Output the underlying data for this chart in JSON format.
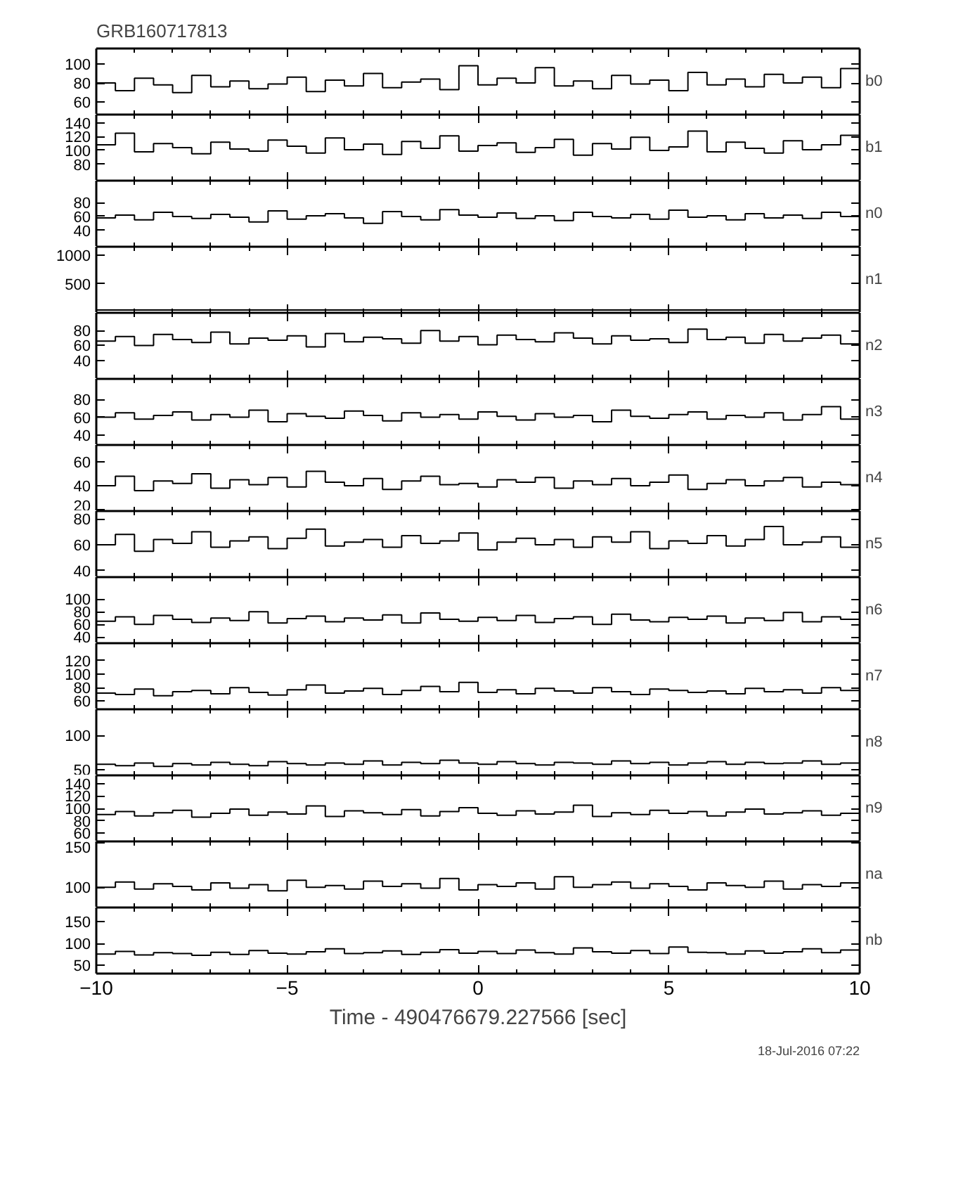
{
  "chart_data": [
    {
      "type": "step",
      "title": "GRB160717813",
      "annotations": [
        "b0"
      ],
      "xlim": [
        -10,
        10
      ],
      "xticks": [
        -10,
        -5,
        0,
        5,
        10
      ],
      "tick_labels": "y",
      "ylim": [
        47,
        116
      ],
      "yticks": [
        60,
        80,
        100
      ],
      "x": [
        -10,
        -9.5,
        -9,
        -8.5,
        -8,
        -7.5,
        -7,
        -6.5,
        -6,
        -5.5,
        -5,
        -4.5,
        -4,
        -3.5,
        -3,
        -2.5,
        -2,
        -1.5,
        -1,
        -0.5,
        0,
        0.5,
        1,
        1.5,
        2,
        2.5,
        3,
        3.5,
        4,
        4.5,
        5,
        5.5,
        6,
        6.5,
        7,
        7.5,
        8,
        8.5,
        9,
        9.5,
        10
      ],
      "values": [
        80,
        72,
        85,
        78,
        70,
        88,
        76,
        82,
        74,
        79,
        86,
        71,
        83,
        77,
        90,
        75,
        81,
        84,
        73,
        98,
        78,
        85,
        80,
        96,
        77,
        82,
        74,
        88,
        79,
        83,
        72,
        91,
        78,
        84,
        76,
        89,
        80,
        86,
        75,
        95,
        83
      ]
    },
    {
      "type": "step",
      "annotations": [
        "b1"
      ],
      "xlim": [
        -10,
        10
      ],
      "xticks": [
        -10,
        -5,
        0,
        5,
        10
      ],
      "tick_labels": "y",
      "ylim": [
        56,
        152
      ],
      "yticks": [
        80,
        100,
        120,
        140
      ],
      "x": [
        -10,
        -9.5,
        -9,
        -8.5,
        -8,
        -7.5,
        -7,
        -6.5,
        -6,
        -5.5,
        -5,
        -4.5,
        -4,
        -3.5,
        -3,
        -2.5,
        -2,
        -1.5,
        -1,
        -0.5,
        0,
        0.5,
        1,
        1.5,
        2,
        2.5,
        3,
        3.5,
        4,
        4.5,
        5,
        5.5,
        6,
        6.5,
        7,
        7.5,
        8,
        8.5,
        9,
        9.5,
        10
      ],
      "values": [
        108,
        125,
        98,
        110,
        104,
        95,
        112,
        102,
        99,
        115,
        106,
        96,
        118,
        101,
        109,
        94,
        113,
        103,
        121,
        99,
        107,
        111,
        97,
        104,
        116,
        93,
        110,
        102,
        119,
        100,
        105,
        128,
        98,
        112,
        103,
        96,
        114,
        101,
        108,
        122,
        104
      ]
    },
    {
      "type": "step",
      "annotations": [
        "n0"
      ],
      "xlim": [
        -10,
        10
      ],
      "xticks": [
        -10,
        -5,
        0,
        5,
        10
      ],
      "tick_labels": "y",
      "ylim": [
        16,
        112
      ],
      "yticks": [
        40,
        60,
        80
      ],
      "x": [
        -10,
        -9.5,
        -9,
        -8.5,
        -8,
        -7.5,
        -7,
        -6.5,
        -6,
        -5.5,
        -5,
        -4.5,
        -4,
        -3.5,
        -3,
        -2.5,
        -2,
        -1.5,
        -1,
        -0.5,
        0,
        0.5,
        1,
        1.5,
        2,
        2.5,
        3,
        3.5,
        4,
        4.5,
        5,
        5.5,
        6,
        6.5,
        7,
        7.5,
        8,
        8.5,
        9,
        9.5,
        10
      ],
      "values": [
        58,
        62,
        55,
        66,
        60,
        57,
        63,
        59,
        52,
        68,
        56,
        61,
        64,
        58,
        50,
        67,
        60,
        55,
        70,
        62,
        59,
        65,
        57,
        61,
        54,
        66,
        60,
        58,
        63,
        56,
        69,
        59,
        61,
        55,
        64,
        58,
        62,
        57,
        66,
        60,
        63
      ]
    },
    {
      "type": "step",
      "annotations": [
        "n1"
      ],
      "xlim": [
        -10,
        10
      ],
      "xticks": [
        -10,
        -5,
        0,
        5,
        10
      ],
      "tick_labels": "y",
      "ylim": [
        0,
        1140
      ],
      "yticks": [
        500,
        1000
      ],
      "x": [
        -10,
        -9.5,
        -9,
        -8.5,
        -8,
        -7.5,
        -7,
        -6.5,
        -6,
        -5.5,
        -5,
        -4.5,
        -4,
        -3.5,
        -3,
        -2.5,
        -2,
        -1.5,
        -1,
        -0.5,
        0,
        0.5,
        1,
        1.5,
        2,
        2.5,
        3,
        3.5,
        4,
        4.5,
        5,
        5.5,
        6,
        6.5,
        7,
        7.5,
        8,
        8.5,
        9,
        9.5,
        10
      ],
      "values": [
        50,
        50,
        50,
        50,
        50,
        50,
        50,
        50,
        50,
        50,
        50,
        50,
        50,
        50,
        50,
        50,
        50,
        50,
        50,
        50,
        50,
        50,
        50,
        50,
        50,
        50,
        50,
        50,
        50,
        50,
        50,
        50,
        50,
        50,
        50,
        50,
        50,
        50,
        50,
        50,
        50
      ]
    },
    {
      "type": "step",
      "annotations": [
        "n2"
      ],
      "xlim": [
        -10,
        10
      ],
      "xticks": [
        -10,
        -5,
        0,
        5,
        10
      ],
      "tick_labels": "y",
      "ylim": [
        15,
        104
      ],
      "yticks": [
        40,
        60,
        80
      ],
      "x": [
        -10,
        -9.5,
        -9,
        -8.5,
        -8,
        -7.5,
        -7,
        -6.5,
        -6,
        -5.5,
        -5,
        -4.5,
        -4,
        -3.5,
        -3,
        -2.5,
        -2,
        -1.5,
        -1,
        -0.5,
        0,
        0.5,
        1,
        1.5,
        2,
        2.5,
        3,
        3.5,
        4,
        4.5,
        5,
        5.5,
        6,
        6.5,
        7,
        7.5,
        8,
        8.5,
        9,
        9.5,
        10
      ],
      "values": [
        66,
        72,
        60,
        75,
        68,
        64,
        78,
        62,
        70,
        67,
        73,
        58,
        76,
        65,
        71,
        69,
        63,
        80,
        66,
        72,
        61,
        74,
        68,
        65,
        77,
        70,
        62,
        73,
        67,
        69,
        64,
        82,
        68,
        71,
        63,
        75,
        66,
        70,
        74,
        62,
        68
      ]
    },
    {
      "type": "step",
      "annotations": [
        "n3"
      ],
      "xlim": [
        -10,
        10
      ],
      "xticks": [
        -10,
        -5,
        0,
        5,
        10
      ],
      "tick_labels": "y",
      "ylim": [
        29,
        103
      ],
      "yticks": [
        40,
        60,
        80
      ],
      "x": [
        -10,
        -9.5,
        -9,
        -8.5,
        -8,
        -7.5,
        -7,
        -6.5,
        -6,
        -5.5,
        -5,
        -4.5,
        -4,
        -3.5,
        -3,
        -2.5,
        -2,
        -1.5,
        -1,
        -0.5,
        0,
        0.5,
        1,
        1.5,
        2,
        2.5,
        3,
        3.5,
        4,
        4.5,
        5,
        5.5,
        6,
        6.5,
        7,
        7.5,
        8,
        8.5,
        9,
        9.5,
        10
      ],
      "values": [
        60,
        65,
        58,
        62,
        66,
        57,
        63,
        60,
        68,
        55,
        64,
        61,
        59,
        67,
        62,
        56,
        65,
        60,
        63,
        58,
        66,
        61,
        57,
        64,
        60,
        62,
        55,
        68,
        61,
        59,
        63,
        66,
        58,
        62,
        60,
        65,
        57,
        63,
        72,
        58,
        64
      ]
    },
    {
      "type": "step",
      "annotations": [
        "n4"
      ],
      "xlim": [
        -10,
        10
      ],
      "xticks": [
        -10,
        -5,
        0,
        5,
        10
      ],
      "tick_labels": "y",
      "ylim": [
        19,
        74
      ],
      "yticks": [
        20,
        40,
        60
      ],
      "x": [
        -10,
        -9.5,
        -9,
        -8.5,
        -8,
        -7.5,
        -7,
        -6.5,
        -6,
        -5.5,
        -5,
        -4.5,
        -4,
        -3.5,
        -3,
        -2.5,
        -2,
        -1.5,
        -1,
        -0.5,
        0,
        0.5,
        1,
        1.5,
        2,
        2.5,
        3,
        3.5,
        4,
        4.5,
        5,
        5.5,
        6,
        6.5,
        7,
        7.5,
        8,
        8.5,
        9,
        9.5,
        10
      ],
      "values": [
        40,
        48,
        36,
        44,
        42,
        50,
        38,
        45,
        41,
        47,
        39,
        52,
        43,
        40,
        46,
        37,
        44,
        48,
        41,
        42,
        39,
        45,
        43,
        47,
        38,
        44,
        41,
        46,
        40,
        43,
        49,
        37,
        42,
        45,
        40,
        44,
        47,
        39,
        43,
        41,
        45
      ]
    },
    {
      "type": "step",
      "annotations": [
        "n5"
      ],
      "xlim": [
        -10,
        10
      ],
      "xticks": [
        -10,
        -5,
        0,
        5,
        10
      ],
      "tick_labels": "y",
      "ylim": [
        35,
        86
      ],
      "yticks": [
        40,
        60,
        80
      ],
      "x": [
        -10,
        -9.5,
        -9,
        -8.5,
        -8,
        -7.5,
        -7,
        -6.5,
        -6,
        -5.5,
        -5,
        -4.5,
        -4,
        -3.5,
        -3,
        -2.5,
        -2,
        -1.5,
        -1,
        -0.5,
        0,
        0.5,
        1,
        1.5,
        2,
        2.5,
        3,
        3.5,
        4,
        4.5,
        5,
        5.5,
        6,
        6.5,
        7,
        7.5,
        8,
        8.5,
        9,
        9.5,
        10
      ],
      "values": [
        60,
        68,
        55,
        64,
        61,
        70,
        58,
        63,
        66,
        57,
        65,
        72,
        59,
        62,
        64,
        58,
        67,
        61,
        63,
        69,
        56,
        62,
        65,
        60,
        64,
        58,
        66,
        62,
        70,
        57,
        63,
        61,
        67,
        59,
        64,
        74,
        60,
        62,
        66,
        58,
        63
      ]
    },
    {
      "type": "step",
      "annotations": [
        "n6"
      ],
      "xlim": [
        -10,
        10
      ],
      "xticks": [
        -10,
        -5,
        0,
        5,
        10
      ],
      "tick_labels": "y",
      "ylim": [
        30,
        135
      ],
      "yticks": [
        40,
        60,
        80,
        100
      ],
      "x": [
        -10,
        -9.5,
        -9,
        -8.5,
        -8,
        -7.5,
        -7,
        -6.5,
        -6,
        -5.5,
        -5,
        -4.5,
        -4,
        -3.5,
        -3,
        -2.5,
        -2,
        -1.5,
        -1,
        -0.5,
        0,
        0.5,
        1,
        1.5,
        2,
        2.5,
        3,
        3.5,
        4,
        4.5,
        5,
        5.5,
        6,
        6.5,
        7,
        7.5,
        8,
        8.5,
        9,
        9.5,
        10
      ],
      "values": [
        65,
        72,
        60,
        74,
        68,
        63,
        70,
        66,
        80,
        62,
        69,
        73,
        64,
        70,
        67,
        75,
        62,
        78,
        68,
        65,
        71,
        66,
        74,
        63,
        69,
        72,
        60,
        76,
        67,
        64,
        71,
        68,
        73,
        62,
        70,
        66,
        79,
        64,
        72,
        68,
        70
      ]
    },
    {
      "type": "step",
      "annotations": [
        "n7"
      ],
      "xlim": [
        -10,
        10
      ],
      "xticks": [
        -10,
        -5,
        0,
        5,
        10
      ],
      "tick_labels": "y",
      "ylim": [
        48,
        146
      ],
      "yticks": [
        60,
        80,
        100,
        120
      ],
      "x": [
        -10,
        -9.5,
        -9,
        -8.5,
        -8,
        -7.5,
        -7,
        -6.5,
        -6,
        -5.5,
        -5,
        -4.5,
        -4,
        -3.5,
        -3,
        -2.5,
        -2,
        -1.5,
        -1,
        -0.5,
        0,
        0.5,
        1,
        1.5,
        2,
        2.5,
        3,
        3.5,
        4,
        4.5,
        5,
        5.5,
        6,
        6.5,
        7,
        7.5,
        8,
        8.5,
        9,
        9.5,
        10
      ],
      "values": [
        72,
        70,
        78,
        68,
        74,
        76,
        71,
        80,
        73,
        69,
        77,
        84,
        72,
        75,
        79,
        70,
        76,
        82,
        74,
        88,
        73,
        77,
        71,
        79,
        75,
        72,
        80,
        74,
        70,
        78,
        76,
        73,
        75,
        71,
        79,
        74,
        77,
        72,
        80,
        76,
        74
      ]
    },
    {
      "type": "step",
      "annotations": [
        "n8"
      ],
      "xlim": [
        -10,
        10
      ],
      "xticks": [
        -10,
        -5,
        0,
        5,
        10
      ],
      "tick_labels": "y",
      "ylim": [
        42,
        138
      ],
      "yticks": [
        50,
        100
      ],
      "x": [
        -10,
        -9.5,
        -9,
        -8.5,
        -8,
        -7.5,
        -7,
        -6.5,
        -6,
        -5.5,
        -5,
        -4.5,
        -4,
        -3.5,
        -3,
        -2.5,
        -2,
        -1.5,
        -1,
        -0.5,
        0,
        0.5,
        1,
        1.5,
        2,
        2.5,
        3,
        3.5,
        4,
        4.5,
        5,
        5.5,
        6,
        6.5,
        7,
        7.5,
        8,
        8.5,
        9,
        9.5,
        10
      ],
      "values": [
        58,
        56,
        60,
        55,
        59,
        57,
        61,
        58,
        56,
        62,
        59,
        57,
        60,
        58,
        63,
        57,
        61,
        59,
        64,
        60,
        58,
        62,
        59,
        57,
        61,
        60,
        58,
        63,
        59,
        61,
        57,
        60,
        62,
        58,
        61,
        59,
        60,
        63,
        58,
        60,
        59
      ]
    },
    {
      "type": "step",
      "annotations": [
        "n9"
      ],
      "xlim": [
        -10,
        10
      ],
      "xticks": [
        -10,
        -5,
        0,
        5,
        10
      ],
      "tick_labels": "y",
      "ylim": [
        47,
        153
      ],
      "yticks": [
        60,
        80,
        100,
        120,
        140
      ],
      "x": [
        -10,
        -9.5,
        -9,
        -8.5,
        -8,
        -7.5,
        -7,
        -6.5,
        -6,
        -5.5,
        -5,
        -4.5,
        -4,
        -3.5,
        -3,
        -2.5,
        -2,
        -1.5,
        -1,
        -0.5,
        0,
        0.5,
        1,
        1.5,
        2,
        2.5,
        3,
        3.5,
        4,
        4.5,
        5,
        5.5,
        6,
        6.5,
        7,
        7.5,
        8,
        8.5,
        9,
        9.5,
        10
      ],
      "values": [
        90,
        95,
        88,
        93,
        97,
        86,
        92,
        99,
        89,
        94,
        91,
        104,
        87,
        96,
        93,
        90,
        98,
        88,
        95,
        101,
        92,
        89,
        96,
        91,
        94,
        105,
        87,
        93,
        90,
        97,
        92,
        95,
        88,
        94,
        99,
        91,
        93,
        96,
        89,
        92,
        95
      ]
    },
    {
      "type": "step",
      "annotations": [
        "na"
      ],
      "xlim": [
        -10,
        10
      ],
      "xticks": [
        -10,
        -5,
        0,
        5,
        10
      ],
      "tick_labels": "y",
      "ylim": [
        77,
        152
      ],
      "yticks": [
        100,
        150
      ],
      "x": [
        -10,
        -9.5,
        -9,
        -8.5,
        -8,
        -7.5,
        -7,
        -6.5,
        -6,
        -5.5,
        -5,
        -4.5,
        -4,
        -3.5,
        -3,
        -2.5,
        -2,
        -1.5,
        -1,
        -0.5,
        0,
        0.5,
        1,
        1.5,
        2,
        2.5,
        3,
        3.5,
        4,
        4.5,
        5,
        5.5,
        6,
        6.5,
        7,
        7.5,
        8,
        8.5,
        9,
        9.5,
        10
      ],
      "values": [
        100,
        106,
        98,
        104,
        101,
        97,
        105,
        99,
        103,
        96,
        108,
        100,
        102,
        98,
        107,
        101,
        104,
        99,
        110,
        97,
        103,
        101,
        105,
        98,
        112,
        100,
        103,
        106,
        99,
        104,
        101,
        97,
        105,
        102,
        100,
        107,
        98,
        103,
        101,
        105,
        100
      ]
    },
    {
      "type": "step",
      "annotations": [
        "nb",
        "18-Jul-2016 07:22"
      ],
      "xlabel": "Time - 490476679.227566 [sec]",
      "xlim": [
        -10,
        10
      ],
      "xticks": [
        -10,
        -5,
        0,
        5,
        10
      ],
      "ylim": [
        31,
        183
      ],
      "yticks": [
        50,
        100,
        150
      ],
      "x": [
        -10,
        -9.5,
        -9,
        -8.5,
        -8,
        -7.5,
        -7,
        -6.5,
        -6,
        -5.5,
        -5,
        -4.5,
        -4,
        -3.5,
        -3,
        -2.5,
        -2,
        -1.5,
        -1,
        -0.5,
        0,
        0.5,
        1,
        1.5,
        2,
        2.5,
        3,
        3.5,
        4,
        4.5,
        5,
        5.5,
        6,
        6.5,
        7,
        7.5,
        8,
        8.5,
        9,
        9.5,
        10
      ],
      "values": [
        76,
        82,
        74,
        79,
        77,
        73,
        80,
        75,
        84,
        78,
        76,
        81,
        88,
        77,
        79,
        83,
        75,
        80,
        86,
        78,
        82,
        77,
        85,
        79,
        76,
        90,
        81,
        78,
        84,
        77,
        92,
        80,
        79,
        76,
        83,
        78,
        81,
        88,
        79,
        85,
        80
      ]
    }
  ]
}
